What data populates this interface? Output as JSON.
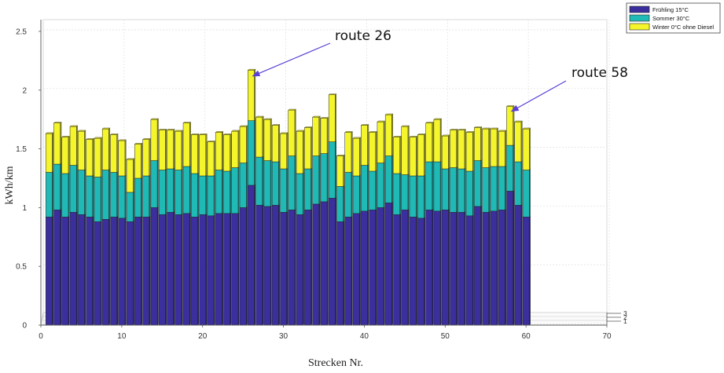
{
  "chart_data": {
    "type": "bar",
    "stacked": true,
    "view": "3d-perspective",
    "xlabel": "Strecken Nr.",
    "ylabel": "kWh/km",
    "xlim": [
      0,
      70
    ],
    "ylim": [
      0,
      2.6
    ],
    "xticks": [
      0,
      10,
      20,
      30,
      40,
      50,
      60,
      70
    ],
    "yticks": [
      0,
      0.5,
      1,
      1.5,
      2,
      2.5
    ],
    "grid": true,
    "depth_ticks": [
      "1",
      "2",
      "3"
    ],
    "legend_position": "top-right",
    "x": [
      1,
      2,
      3,
      4,
      5,
      6,
      7,
      8,
      9,
      10,
      11,
      12,
      13,
      14,
      15,
      16,
      17,
      18,
      19,
      20,
      21,
      22,
      23,
      24,
      25,
      26,
      27,
      28,
      29,
      30,
      31,
      32,
      33,
      34,
      35,
      36,
      37,
      38,
      39,
      40,
      41,
      42,
      43,
      44,
      45,
      46,
      47,
      48,
      49,
      50,
      51,
      52,
      53,
      54,
      55,
      56,
      57,
      58,
      59,
      60
    ],
    "series": [
      {
        "name": "Frühling 15°C",
        "color": "#3b2f9e",
        "values": [
          0.92,
          0.98,
          0.92,
          0.96,
          0.94,
          0.92,
          0.88,
          0.9,
          0.92,
          0.91,
          0.88,
          0.92,
          0.92,
          1.0,
          0.94,
          0.96,
          0.94,
          0.95,
          0.92,
          0.94,
          0.93,
          0.95,
          0.95,
          0.95,
          1.0,
          1.19,
          1.02,
          1.01,
          1.02,
          0.96,
          0.98,
          0.94,
          0.98,
          1.03,
          1.05,
          1.08,
          0.88,
          0.92,
          0.95,
          0.97,
          0.98,
          1.0,
          1.04,
          0.94,
          0.98,
          0.92,
          0.91,
          0.98,
          0.97,
          0.98,
          0.96,
          0.96,
          0.93,
          1.01,
          0.96,
          0.97,
          0.98,
          1.14,
          1.02,
          0.92
        ]
      },
      {
        "name": "Sommer 30°C",
        "color": "#1fbab5",
        "values": [
          0.38,
          0.39,
          0.37,
          0.4,
          0.38,
          0.35,
          0.38,
          0.42,
          0.38,
          0.36,
          0.25,
          0.33,
          0.35,
          0.4,
          0.38,
          0.37,
          0.38,
          0.4,
          0.37,
          0.33,
          0.34,
          0.37,
          0.36,
          0.39,
          0.38,
          0.55,
          0.41,
          0.39,
          0.37,
          0.37,
          0.46,
          0.35,
          0.35,
          0.41,
          0.41,
          0.48,
          0.3,
          0.38,
          0.32,
          0.39,
          0.33,
          0.38,
          0.4,
          0.35,
          0.3,
          0.35,
          0.36,
          0.41,
          0.42,
          0.35,
          0.38,
          0.37,
          0.38,
          0.39,
          0.38,
          0.38,
          0.37,
          0.39,
          0.37,
          0.4
        ]
      },
      {
        "name": "Winter 0°C ohne Diesel",
        "color": "#f5f52c",
        "values": [
          0.33,
          0.35,
          0.31,
          0.33,
          0.33,
          0.31,
          0.33,
          0.35,
          0.32,
          0.3,
          0.28,
          0.29,
          0.31,
          0.35,
          0.34,
          0.33,
          0.33,
          0.37,
          0.33,
          0.35,
          0.29,
          0.32,
          0.31,
          0.31,
          0.31,
          0.43,
          0.34,
          0.35,
          0.31,
          0.3,
          0.39,
          0.36,
          0.35,
          0.33,
          0.3,
          0.4,
          0.26,
          0.34,
          0.32,
          0.34,
          0.33,
          0.35,
          0.35,
          0.31,
          0.41,
          0.33,
          0.35,
          0.33,
          0.36,
          0.28,
          0.32,
          0.33,
          0.33,
          0.28,
          0.33,
          0.32,
          0.3,
          0.33,
          0.34,
          0.35
        ]
      }
    ],
    "annotations": [
      {
        "text": "route 26",
        "target_x": 26,
        "target_y": 2.16
      },
      {
        "text": "route 58",
        "target_x": 58,
        "target_y": 1.86
      }
    ]
  }
}
